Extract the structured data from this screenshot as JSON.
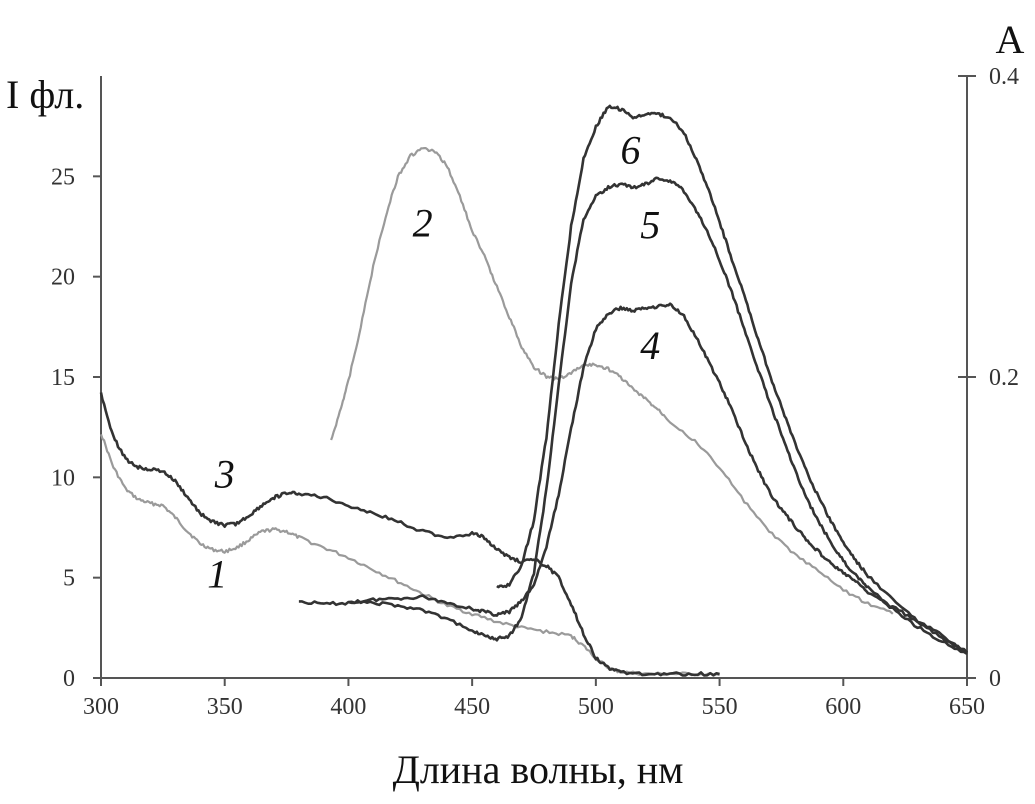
{
  "chart_data": {
    "type": "line",
    "xlabel": "Длина волны, нм",
    "ylabel_left": "I фл.",
    "ylabel_right": "A",
    "xlim": [
      300,
      650
    ],
    "ylim_left": [
      0,
      30
    ],
    "ylim_right": [
      0,
      0.4
    ],
    "x_ticks": [
      "300",
      "350",
      "400",
      "450",
      "500",
      "550",
      "600",
      "650"
    ],
    "y_left_ticks": [
      "0",
      "5",
      "10",
      "15",
      "20",
      "25"
    ],
    "y_right_ticks": [
      "0",
      "0.2",
      "0.4"
    ],
    "grid": false,
    "series": [
      {
        "name": "1",
        "axis": "left",
        "color": "#9a9a9a",
        "label_at": [
          347,
          4.5
        ],
        "points": [
          [
            300,
            12.2
          ],
          [
            305,
            10.5
          ],
          [
            310,
            9.4
          ],
          [
            315,
            8.9
          ],
          [
            320,
            8.7
          ],
          [
            325,
            8.6
          ],
          [
            330,
            8.0
          ],
          [
            335,
            7.3
          ],
          [
            340,
            6.7
          ],
          [
            345,
            6.4
          ],
          [
            350,
            6.3
          ],
          [
            355,
            6.5
          ],
          [
            360,
            6.9
          ],
          [
            365,
            7.3
          ],
          [
            370,
            7.4
          ],
          [
            375,
            7.3
          ],
          [
            380,
            7.0
          ],
          [
            390,
            6.5
          ],
          [
            400,
            6.0
          ],
          [
            410,
            5.4
          ],
          [
            420,
            4.8
          ],
          [
            430,
            4.2
          ],
          [
            440,
            3.6
          ],
          [
            450,
            3.2
          ],
          [
            460,
            2.8
          ],
          [
            470,
            2.5
          ],
          [
            480,
            2.3
          ],
          [
            490,
            2.1
          ],
          [
            495,
            1.6
          ],
          [
            500,
            1.0
          ],
          [
            505,
            0.5
          ],
          [
            510,
            0.3
          ],
          [
            520,
            0.2
          ],
          [
            530,
            0.2
          ],
          [
            540,
            0.2
          ],
          [
            550,
            0.15
          ]
        ]
      },
      {
        "name": "2",
        "axis": "left",
        "color": "#9a9a9a",
        "label_at": [
          430,
          22.0
        ],
        "points": [
          [
            393,
            11.8
          ],
          [
            397,
            13.5
          ],
          [
            400,
            14.8
          ],
          [
            405,
            17.5
          ],
          [
            410,
            20.5
          ],
          [
            415,
            23.0
          ],
          [
            420,
            25.0
          ],
          [
            425,
            26.0
          ],
          [
            430,
            26.4
          ],
          [
            435,
            26.2
          ],
          [
            440,
            25.5
          ],
          [
            445,
            24.0
          ],
          [
            450,
            22.3
          ],
          [
            455,
            21.0
          ],
          [
            460,
            19.5
          ],
          [
            465,
            18.0
          ],
          [
            470,
            16.5
          ],
          [
            475,
            15.5
          ],
          [
            480,
            15.0
          ],
          [
            485,
            14.9
          ],
          [
            490,
            15.2
          ],
          [
            495,
            15.6
          ],
          [
            500,
            15.6
          ],
          [
            505,
            15.4
          ],
          [
            510,
            15.0
          ],
          [
            515,
            14.4
          ],
          [
            520,
            13.9
          ],
          [
            525,
            13.4
          ],
          [
            530,
            12.8
          ],
          [
            540,
            11.8
          ],
          [
            550,
            10.5
          ],
          [
            560,
            8.8
          ],
          [
            570,
            7.3
          ],
          [
            580,
            6.2
          ],
          [
            590,
            5.3
          ],
          [
            600,
            4.4
          ],
          [
            610,
            3.7
          ],
          [
            620,
            3.2
          ]
        ]
      },
      {
        "name": "3",
        "axis": "left",
        "color": "#333333",
        "label_at": [
          350,
          9.5
        ],
        "points": [
          [
            300,
            14.2
          ],
          [
            305,
            12.0
          ],
          [
            310,
            10.9
          ],
          [
            315,
            10.5
          ],
          [
            320,
            10.4
          ],
          [
            325,
            10.3
          ],
          [
            330,
            9.8
          ],
          [
            335,
            9.0
          ],
          [
            340,
            8.2
          ],
          [
            345,
            7.8
          ],
          [
            350,
            7.6
          ],
          [
            355,
            7.7
          ],
          [
            360,
            8.1
          ],
          [
            365,
            8.6
          ],
          [
            370,
            9.0
          ],
          [
            375,
            9.2
          ],
          [
            380,
            9.2
          ],
          [
            390,
            9.0
          ],
          [
            400,
            8.6
          ],
          [
            410,
            8.2
          ],
          [
            420,
            7.8
          ],
          [
            430,
            7.3
          ],
          [
            440,
            7.0
          ],
          [
            450,
            7.2
          ],
          [
            455,
            7.0
          ],
          [
            460,
            6.4
          ],
          [
            465,
            6.0
          ],
          [
            470,
            5.8
          ],
          [
            475,
            5.9
          ],
          [
            480,
            5.6
          ],
          [
            485,
            5.0
          ],
          [
            490,
            3.7
          ],
          [
            495,
            2.2
          ],
          [
            500,
            1.0
          ],
          [
            505,
            0.5
          ],
          [
            510,
            0.3
          ],
          [
            520,
            0.2
          ],
          [
            530,
            0.2
          ],
          [
            540,
            0.2
          ],
          [
            550,
            0.2
          ]
        ]
      },
      {
        "name": "4",
        "axis": "right",
        "color": "#333333",
        "label_at": [
          522,
          0.212
        ],
        "points": [
          [
            380,
            0.051
          ],
          [
            390,
            0.049
          ],
          [
            400,
            0.05
          ],
          [
            410,
            0.052
          ],
          [
            420,
            0.053
          ],
          [
            430,
            0.054
          ],
          [
            440,
            0.05
          ],
          [
            450,
            0.046
          ],
          [
            455,
            0.044
          ],
          [
            460,
            0.042
          ],
          [
            465,
            0.044
          ],
          [
            470,
            0.051
          ],
          [
            475,
            0.062
          ],
          [
            480,
            0.087
          ],
          [
            485,
            0.122
          ],
          [
            490,
            0.166
          ],
          [
            495,
            0.206
          ],
          [
            500,
            0.232
          ],
          [
            505,
            0.242
          ],
          [
            510,
            0.246
          ],
          [
            515,
            0.244
          ],
          [
            520,
            0.246
          ],
          [
            525,
            0.247
          ],
          [
            530,
            0.248
          ],
          [
            535,
            0.242
          ],
          [
            540,
            0.228
          ],
          [
            545,
            0.212
          ],
          [
            550,
            0.196
          ],
          [
            555,
            0.178
          ],
          [
            560,
            0.158
          ],
          [
            565,
            0.14
          ],
          [
            570,
            0.124
          ],
          [
            575,
            0.112
          ],
          [
            580,
            0.102
          ],
          [
            585,
            0.092
          ],
          [
            590,
            0.084
          ],
          [
            595,
            0.076
          ],
          [
            600,
            0.07
          ],
          [
            605,
            0.064
          ],
          [
            610,
            0.057
          ],
          [
            620,
            0.047
          ],
          [
            630,
            0.038
          ],
          [
            640,
            0.028
          ],
          [
            650,
            0.017
          ]
        ]
      },
      {
        "name": "5",
        "axis": "right",
        "color": "#333333",
        "label_at": [
          522,
          0.292
        ],
        "points": [
          [
            400,
            0.051
          ],
          [
            410,
            0.05
          ],
          [
            420,
            0.048
          ],
          [
            430,
            0.045
          ],
          [
            440,
            0.039
          ],
          [
            450,
            0.032
          ],
          [
            455,
            0.028
          ],
          [
            460,
            0.026
          ],
          [
            465,
            0.028
          ],
          [
            470,
            0.04
          ],
          [
            475,
            0.07
          ],
          [
            480,
            0.125
          ],
          [
            485,
            0.195
          ],
          [
            490,
            0.262
          ],
          [
            495,
            0.305
          ],
          [
            500,
            0.32
          ],
          [
            505,
            0.326
          ],
          [
            510,
            0.328
          ],
          [
            515,
            0.326
          ],
          [
            520,
            0.328
          ],
          [
            525,
            0.332
          ],
          [
            530,
            0.33
          ],
          [
            535,
            0.325
          ],
          [
            540,
            0.312
          ],
          [
            545,
            0.297
          ],
          [
            550,
            0.278
          ],
          [
            555,
            0.256
          ],
          [
            560,
            0.232
          ],
          [
            565,
            0.208
          ],
          [
            570,
            0.184
          ],
          [
            575,
            0.162
          ],
          [
            580,
            0.14
          ],
          [
            585,
            0.12
          ],
          [
            590,
            0.104
          ],
          [
            595,
            0.09
          ],
          [
            600,
            0.078
          ],
          [
            605,
            0.068
          ],
          [
            610,
            0.06
          ],
          [
            620,
            0.046
          ],
          [
            630,
            0.034
          ],
          [
            640,
            0.024
          ],
          [
            650,
            0.016
          ]
        ]
      },
      {
        "name": "6",
        "axis": "right",
        "color": "#333333",
        "label_at": [
          514,
          0.342
        ],
        "points": [
          [
            460,
            0.06
          ],
          [
            465,
            0.062
          ],
          [
            470,
            0.075
          ],
          [
            475,
            0.105
          ],
          [
            480,
            0.16
          ],
          [
            485,
            0.235
          ],
          [
            490,
            0.3
          ],
          [
            495,
            0.345
          ],
          [
            500,
            0.366
          ],
          [
            505,
            0.38
          ],
          [
            510,
            0.378
          ],
          [
            515,
            0.373
          ],
          [
            520,
            0.374
          ],
          [
            525,
            0.375
          ],
          [
            530,
            0.372
          ],
          [
            535,
            0.364
          ],
          [
            540,
            0.347
          ],
          [
            545,
            0.327
          ],
          [
            550,
            0.303
          ],
          [
            555,
            0.278
          ],
          [
            560,
            0.254
          ],
          [
            565,
            0.228
          ],
          [
            570,
            0.203
          ],
          [
            575,
            0.18
          ],
          [
            580,
            0.158
          ],
          [
            585,
            0.138
          ],
          [
            590,
            0.12
          ],
          [
            595,
            0.104
          ],
          [
            600,
            0.09
          ],
          [
            605,
            0.078
          ],
          [
            610,
            0.068
          ],
          [
            620,
            0.052
          ],
          [
            630,
            0.038
          ],
          [
            640,
            0.026
          ],
          [
            650,
            0.017
          ]
        ]
      }
    ]
  }
}
